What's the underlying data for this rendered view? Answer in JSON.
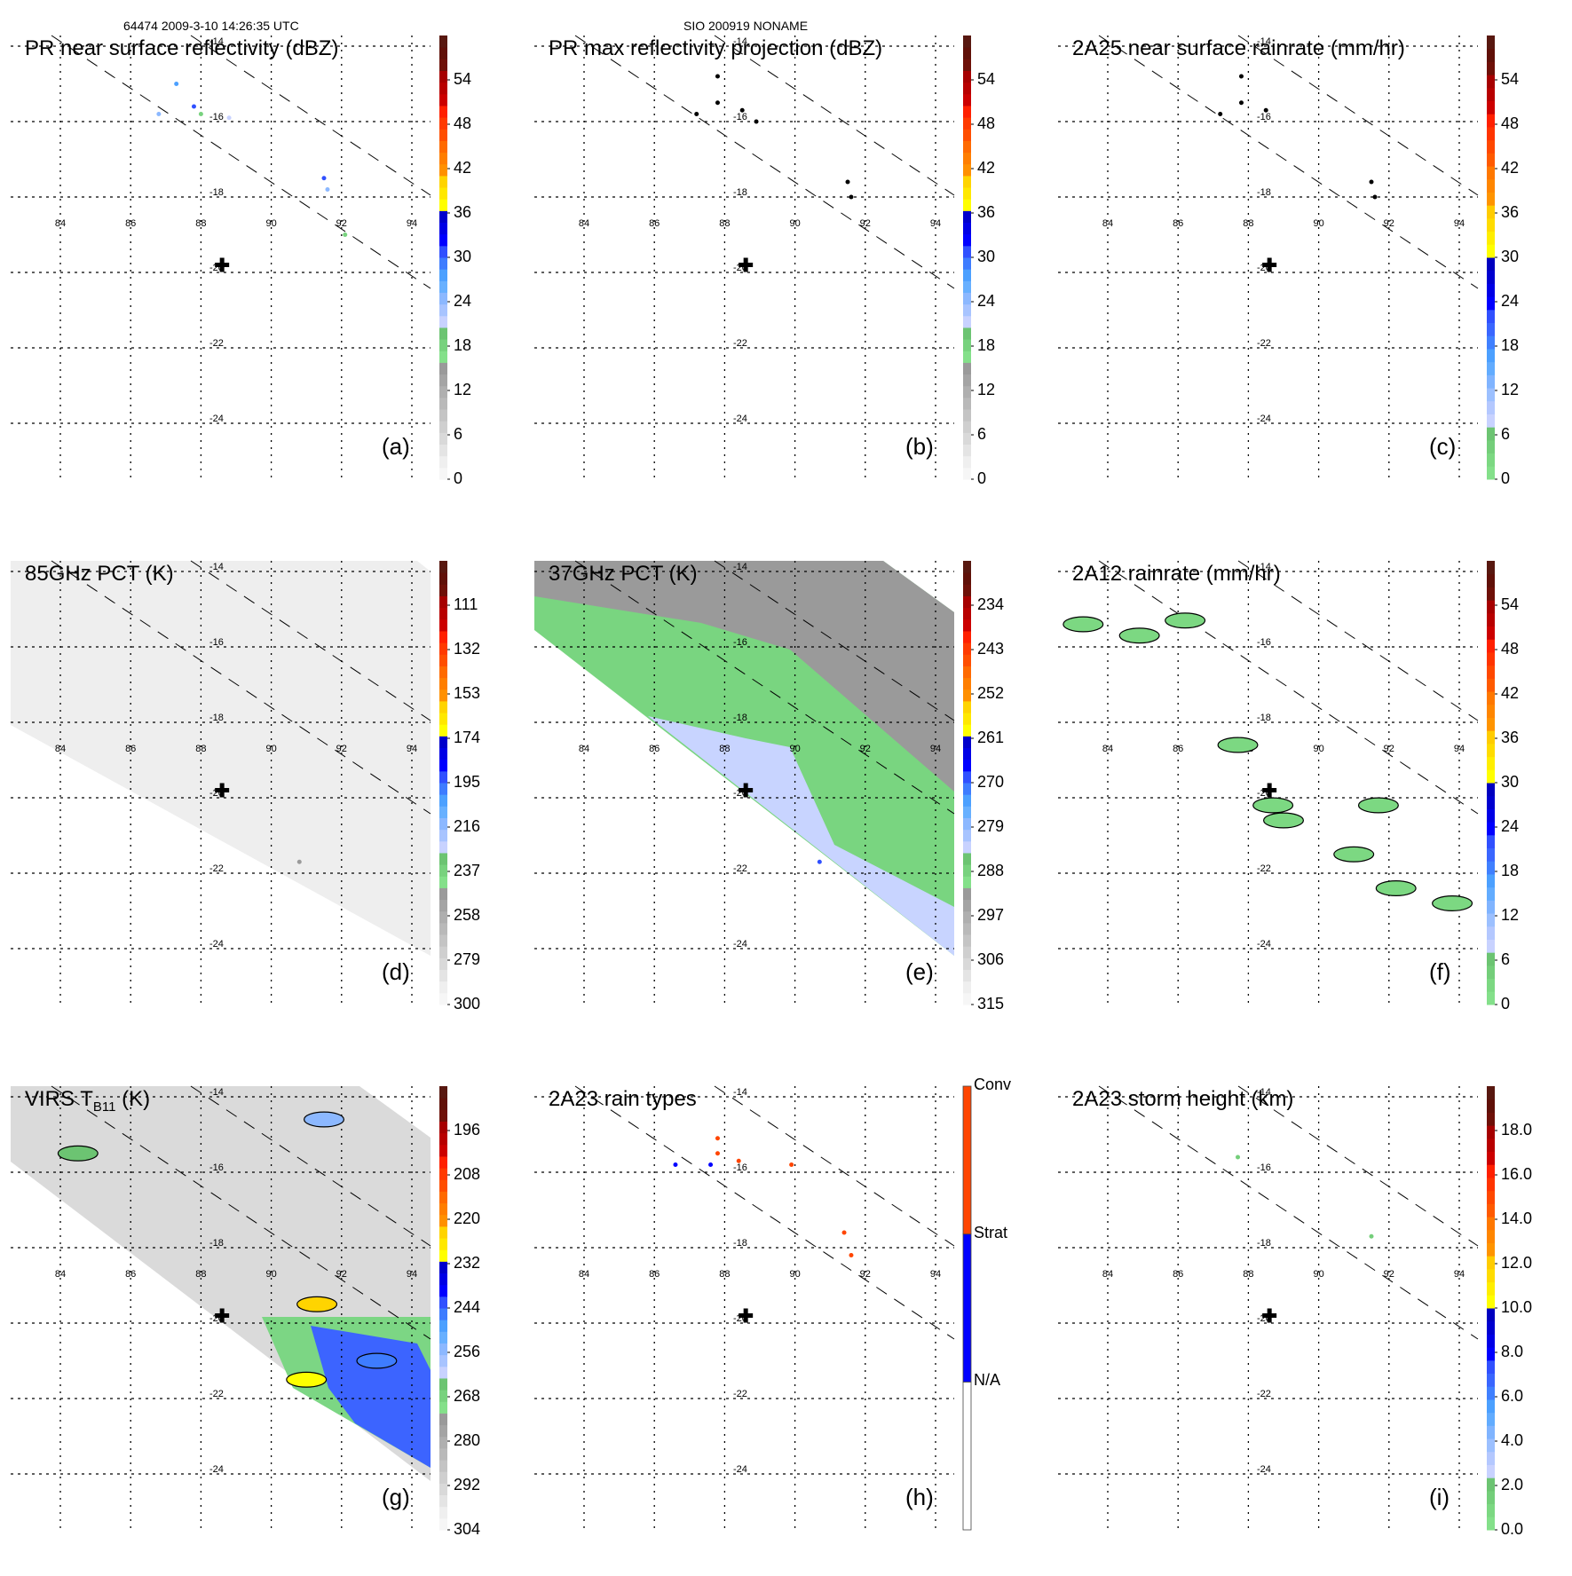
{
  "header": {
    "left": "64474 2009-3-10 14:26:35 UTC",
    "center": "SIO 200919 NONAME"
  },
  "chart_data": [
    {
      "id": "a",
      "type": "heatmap",
      "title": "PR near surface reflectivity (dBZ)",
      "panel_label": "(a)",
      "swath": "PR",
      "colorbar": {
        "ticks": [
          "0",
          "6",
          "12",
          "18",
          "24",
          "30",
          "36",
          "42",
          "48",
          "54"
        ],
        "range": [
          0,
          60
        ],
        "scale": "dbz"
      },
      "features": [
        {
          "lon": 87.3,
          "lat": -15.0,
          "value": 27
        },
        {
          "lon": 87.8,
          "lat": -15.6,
          "value": 31
        },
        {
          "lon": 88.0,
          "lat": -15.8,
          "value": 18
        },
        {
          "lon": 88.8,
          "lat": -15.9,
          "value": 22
        },
        {
          "lon": 86.8,
          "lat": -15.8,
          "value": 24
        },
        {
          "lon": 91.5,
          "lat": -17.5,
          "value": 30
        },
        {
          "lon": 91.6,
          "lat": -17.8,
          "value": 25
        },
        {
          "lon": 92.1,
          "lat": -19.0,
          "value": 18
        }
      ]
    },
    {
      "id": "b",
      "type": "heatmap",
      "title": "PR max reflectivity projection (dBZ)",
      "panel_label": "(b)",
      "swath": "PR",
      "colorbar": {
        "ticks": [
          "0",
          "6",
          "12",
          "18",
          "24",
          "30",
          "36",
          "42",
          "48",
          "54"
        ],
        "range": [
          0,
          60
        ],
        "scale": "dbz"
      },
      "features": [
        {
          "lon": 87.8,
          "lat": -14.8,
          "value": 60
        },
        {
          "lon": 87.8,
          "lat": -15.5,
          "value": 60
        },
        {
          "lon": 87.2,
          "lat": -15.8,
          "value": 60
        },
        {
          "lon": 88.5,
          "lat": -15.7,
          "value": 60
        },
        {
          "lon": 88.9,
          "lat": -16.0,
          "value": 60
        },
        {
          "lon": 91.5,
          "lat": -17.6,
          "value": 60
        },
        {
          "lon": 91.6,
          "lat": -18.0,
          "value": 60
        }
      ]
    },
    {
      "id": "c",
      "type": "heatmap",
      "title": "2A25 near surface rainrate (mm/hr)",
      "panel_label": "(c)",
      "swath": "PR",
      "colorbar": {
        "ticks": [
          "0",
          "6",
          "12",
          "18",
          "24",
          "30",
          "36",
          "42",
          "48",
          "54"
        ],
        "range": [
          0,
          60
        ],
        "scale": "rain"
      },
      "features": [
        {
          "lon": 87.8,
          "lat": -14.8,
          "value": 60
        },
        {
          "lon": 87.8,
          "lat": -15.5,
          "value": 60
        },
        {
          "lon": 87.2,
          "lat": -15.8,
          "value": 60
        },
        {
          "lon": 88.5,
          "lat": -15.7,
          "value": 60
        },
        {
          "lon": 91.5,
          "lat": -17.6,
          "value": 60
        },
        {
          "lon": 91.6,
          "lat": -18.0,
          "value": 60
        }
      ]
    },
    {
      "id": "d",
      "type": "heatmap",
      "title": "85GHz PCT (K)",
      "panel_label": "(d)",
      "swath": "TMI",
      "fill": "light-gray",
      "colorbar": {
        "ticks": [
          "300",
          "279",
          "258",
          "237",
          "216",
          "195",
          "174",
          "153",
          "132",
          "111"
        ],
        "range": [
          300,
          90
        ],
        "scale": "dbz"
      },
      "features": [
        {
          "lon": 90.8,
          "lat": -21.7,
          "value": 250
        }
      ]
    },
    {
      "id": "e",
      "type": "heatmap",
      "title": "37GHz PCT (K)",
      "panel_label": "(e)",
      "swath": "TMI",
      "fill": "green-gray",
      "colorbar": {
        "ticks": [
          "315",
          "306",
          "297",
          "288",
          "279",
          "270",
          "261",
          "252",
          "243",
          "234"
        ],
        "range": [
          315,
          225
        ],
        "scale": "dbz"
      },
      "features": [
        {
          "lon": 90.7,
          "lat": -21.7,
          "value": 270
        }
      ]
    },
    {
      "id": "f",
      "type": "heatmap",
      "title": "2A12 rainrate (mm/hr)",
      "panel_label": "(f)",
      "swath": "TMI",
      "colorbar": {
        "ticks": [
          "0",
          "6",
          "12",
          "18",
          "24",
          "30",
          "36",
          "42",
          "48",
          "54"
        ],
        "range": [
          0,
          60
        ],
        "scale": "rain"
      },
      "features": [
        {
          "lon": 83.3,
          "lat": -15.4,
          "value": 3
        },
        {
          "lon": 84.9,
          "lat": -15.7,
          "value": 3
        },
        {
          "lon": 86.2,
          "lat": -15.3,
          "value": 3
        },
        {
          "lon": 87.7,
          "lat": -18.6,
          "value": 3
        },
        {
          "lon": 88.7,
          "lat": -20.2,
          "value": 3
        },
        {
          "lon": 89.0,
          "lat": -20.6,
          "value": 3
        },
        {
          "lon": 91.7,
          "lat": -20.2,
          "value": 3
        },
        {
          "lon": 91.0,
          "lat": -21.5,
          "value": 3
        },
        {
          "lon": 92.2,
          "lat": -22.4,
          "value": 3
        },
        {
          "lon": 93.8,
          "lat": -22.8,
          "value": 3
        }
      ]
    },
    {
      "id": "g",
      "type": "heatmap",
      "title": "VIRS T",
      "title_sub": "B11",
      "title_suffix": " (K)",
      "panel_label": "(g)",
      "swath": "VIRS",
      "fill": "gray",
      "colorbar": {
        "ticks": [
          "304",
          "292",
          "280",
          "268",
          "256",
          "244",
          "232",
          "220",
          "208",
          "196"
        ],
        "range": [
          304,
          184
        ],
        "scale": "dbz"
      },
      "features": [
        {
          "lon": 84.5,
          "lat": -15.5,
          "value": 266
        },
        {
          "lon": 91.5,
          "lat": -14.6,
          "value": 255
        },
        {
          "lon": 91.3,
          "lat": -19.5,
          "value": 225
        },
        {
          "lon": 93.0,
          "lat": -21.0,
          "value": 245
        },
        {
          "lon": 91.0,
          "lat": -21.5,
          "value": 230
        }
      ]
    },
    {
      "id": "h",
      "type": "heatmap",
      "title": "2A23 rain types",
      "panel_label": "(h)",
      "swath": "PR",
      "colorbar": {
        "categories": [
          "N/A",
          "Strat",
          "Conv"
        ],
        "colors": [
          "#ffffff",
          "#0000ff",
          "#ff4500"
        ]
      },
      "features": [
        {
          "lon": 87.8,
          "lat": -15.1,
          "value": "Conv"
        },
        {
          "lon": 87.8,
          "lat": -15.5,
          "value": "Conv"
        },
        {
          "lon": 88.4,
          "lat": -15.7,
          "value": "Conv"
        },
        {
          "lon": 87.6,
          "lat": -15.8,
          "value": "Strat"
        },
        {
          "lon": 86.6,
          "lat": -15.8,
          "value": "Strat"
        },
        {
          "lon": 89.9,
          "lat": -15.8,
          "value": "Conv"
        },
        {
          "lon": 91.4,
          "lat": -17.6,
          "value": "Conv"
        },
        {
          "lon": 91.6,
          "lat": -18.2,
          "value": "Conv"
        }
      ]
    },
    {
      "id": "i",
      "type": "heatmap",
      "title": "2A23 storm height (km)",
      "panel_label": "(i)",
      "swath": "PR",
      "colorbar": {
        "ticks": [
          "0.0",
          "2.0",
          "4.0",
          "6.0",
          "8.0",
          "10.0",
          "12.0",
          "14.0",
          "16.0",
          "18.0"
        ],
        "range": [
          0,
          20
        ],
        "scale": "rain"
      },
      "features": [
        {
          "lon": 87.7,
          "lat": -15.6,
          "value": 1.5
        },
        {
          "lon": 91.5,
          "lat": -17.7,
          "value": 1.5
        }
      ]
    }
  ],
  "map": {
    "lon_ticks": [
      "84",
      "86",
      "88",
      "90",
      "92",
      "94"
    ],
    "lat_ticks": [
      "-14",
      "-16",
      "-18",
      "-20",
      "-22",
      "-24"
    ],
    "lon_range": [
      82.5,
      94.8
    ],
    "lat_range": [
      -13.7,
      -25.5
    ],
    "storm_center": {
      "lon": 88.6,
      "lat": -19.8,
      "marker": "plus-icon"
    }
  }
}
